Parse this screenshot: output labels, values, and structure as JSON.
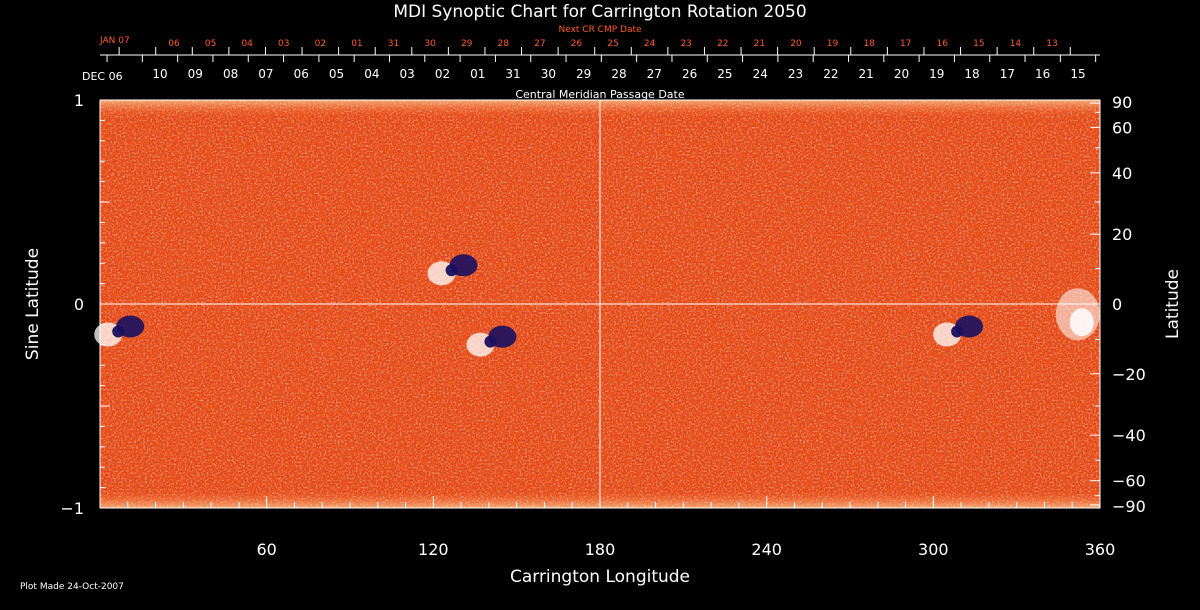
{
  "chart_data": {
    "type": "heatmap",
    "title": "MDI Synoptic Chart for Carrington Rotation 2050",
    "xlabel": "Carrington Longitude",
    "ylabel_left": "Sine Latitude",
    "ylabel_right": "Latitude",
    "xlim": [
      0,
      360
    ],
    "ylim": [
      -1,
      1
    ],
    "x_ticks": [
      "60",
      "120",
      "180",
      "240",
      "300",
      "360"
    ],
    "x_tick_values": [
      60,
      120,
      180,
      240,
      300,
      360
    ],
    "y_ticks_left": [
      "1",
      "0",
      "−1"
    ],
    "y_tick_values_left": [
      1,
      0,
      -1
    ],
    "y_ticks_right": [
      "90",
      "60",
      "40",
      "20",
      "0",
      "−20",
      "−40",
      "−60",
      "−90"
    ],
    "y_tick_values_right": [
      90,
      60,
      40,
      20,
      0,
      -20,
      -40,
      -60,
      -90
    ],
    "cmp_axis": {
      "label": "Central Meridian Passage Date",
      "start_label": "DEC 06",
      "ticks": [
        "10",
        "09",
        "08",
        "07",
        "06",
        "05",
        "04",
        "03",
        "02",
        "01",
        "31",
        "30",
        "29",
        "28",
        "27",
        "26",
        "25",
        "24",
        "23",
        "22",
        "21",
        "20",
        "19",
        "18",
        "17",
        "16",
        "15"
      ]
    },
    "next_cmp_axis": {
      "label": "Next CR CMP Date",
      "start_label": "JAN 07",
      "ticks": [
        "06",
        "05",
        "04",
        "03",
        "02",
        "01",
        "31",
        "30",
        "29",
        "28",
        "27",
        "26",
        "25",
        "24",
        "23",
        "22",
        "21",
        "20",
        "19",
        "18",
        "17",
        "16",
        "15",
        "14",
        "13"
      ]
    },
    "active_regions": [
      {
        "lon": 8,
        "sinlat": -0.12,
        "polarity": "mixed"
      },
      {
        "lon": 128,
        "sinlat": 0.18,
        "polarity": "mixed"
      },
      {
        "lon": 142,
        "sinlat": -0.17,
        "polarity": "mixed"
      },
      {
        "lon": 310,
        "sinlat": -0.12,
        "polarity": "mixed"
      },
      {
        "lon": 352,
        "sinlat": -0.05,
        "polarity": "positive"
      }
    ],
    "colors": {
      "background": "#e8501a",
      "positive": "#ffffff",
      "negative": "#1a1060",
      "axis": "#ffffff",
      "secondary_axis": "#ff5a2a"
    }
  },
  "footer": {
    "plot_made": "Plot Made 24-Oct-2007"
  }
}
